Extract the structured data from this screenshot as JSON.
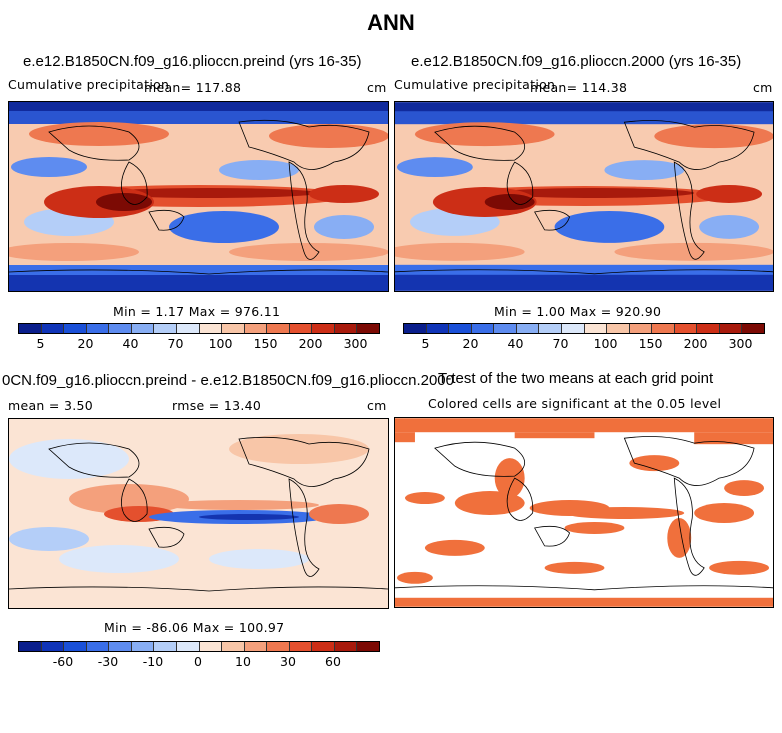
{
  "figure": {
    "title": "ANN"
  },
  "panels": {
    "top_left": {
      "title": "e.e12.B1850CN.f09_g16.plioccn.preind (yrs 16-35)",
      "variable": "Cumulative precipitation",
      "mean": "mean= 117.88",
      "units": "cm",
      "minmax": "Min =    1.17 Max = 976.11"
    },
    "top_right": {
      "title": "e.e12.B1850CN.f09_g16.plioccn.2000 (yrs 16-35)",
      "variable": "Cumulative precipitation",
      "mean": "mean= 114.38",
      "units": "cm",
      "minmax": "Min =    1.00 Max = 920.90"
    },
    "bottom_left": {
      "title": "0CN.f09_g16.plioccn.preind - e.e12.B1850CN.f09_g16.plioccn.2000",
      "mean": "mean =   3.50",
      "rmse": "rmse =  13.40",
      "units": "cm",
      "minmax": "Min = -86.06 Max = 100.97"
    },
    "bottom_right": {
      "title": "T-test of the two means at each grid point",
      "subtitle": "Colored cells are significant at the 0.05 level"
    }
  },
  "colorbars": {
    "precip": {
      "colors": [
        "#0a1e8c",
        "#1034b8",
        "#1a50d8",
        "#3a6ee8",
        "#5e8cf0",
        "#88aef4",
        "#b4cef8",
        "#dce8fa",
        "#fbe4d4",
        "#f8c6a8",
        "#f4a07c",
        "#ee7850",
        "#e4502e",
        "#cc2e16",
        "#a81a0c",
        "#7c0a04"
      ],
      "tick_labels": [
        "5",
        "20",
        "40",
        "70",
        "100",
        "150",
        "200",
        "300"
      ]
    },
    "diff": {
      "colors": [
        "#0a1e8c",
        "#1034b8",
        "#1a50d8",
        "#3a6ee8",
        "#5e8cf0",
        "#88aef4",
        "#b4cef8",
        "#dce8fa",
        "#fbe4d4",
        "#f8c6a8",
        "#f4a07c",
        "#ee7850",
        "#e4502e",
        "#cc2e16",
        "#a81a0c",
        "#7c0a04"
      ],
      "tick_labels": [
        "-60",
        "-30",
        "-10",
        "0",
        "10",
        "30",
        "60"
      ]
    }
  },
  "significance_color": "#f0703c"
}
